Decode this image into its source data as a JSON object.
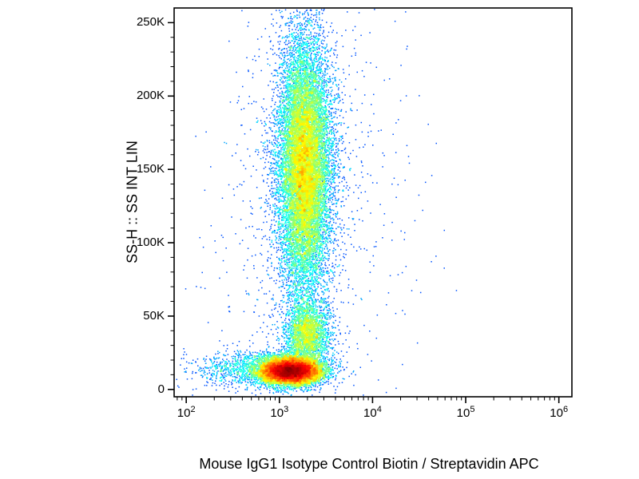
{
  "background_color": "#ffffff",
  "chart_data": {
    "type": "scatter",
    "subtype": "flow_cytometry_pseudocolor_density_dot_plot",
    "title": "",
    "xlabel": "Mouse IgG1 Isotype Control Biotin / Streptavidin APC",
    "ylabel": "SS-H :: SS INT LIN",
    "x_scale": "log10",
    "x_log_range": [
      1.87,
      6.14
    ],
    "y_range": [
      -5000,
      260000
    ],
    "x_ticks": [
      {
        "log": 2,
        "base": "10",
        "exp": "2"
      },
      {
        "log": 3,
        "base": "10",
        "exp": "3"
      },
      {
        "log": 4,
        "base": "10",
        "exp": "4"
      },
      {
        "log": 5,
        "base": "10",
        "exp": "5"
      },
      {
        "log": 6,
        "base": "10",
        "exp": "6"
      }
    ],
    "y_ticks": [
      {
        "value": 0,
        "label": "0"
      },
      {
        "value": 50000,
        "label": "50K"
      },
      {
        "value": 100000,
        "label": "100K"
      },
      {
        "value": 150000,
        "label": "150K"
      },
      {
        "value": 200000,
        "label": "200K"
      },
      {
        "value": 250000,
        "label": "250K"
      }
    ],
    "y_minor_tick_step": 10000,
    "x_minor_ticks": "log decades 2-9 per decade",
    "grid": false,
    "legend": false,
    "colormap": "jet",
    "density_color_low": "#0000bf",
    "density_color_high": "#ff0000",
    "axis_color": "#000000",
    "populations": [
      {
        "name": "high-ssc-main",
        "x_log_mean": 3.27,
        "x_log_sigma": 0.135,
        "y_mean": 152000,
        "y_sigma": 42000,
        "count": 15000
      },
      {
        "name": "high-ssc-halo",
        "x_log_mean": 3.27,
        "x_log_sigma": 0.28,
        "y_mean": 148000,
        "y_sigma": 62000,
        "count": 1200
      },
      {
        "name": "mid-ssc",
        "x_log_mean": 3.3,
        "x_log_sigma": 0.12,
        "y_mean": 38000,
        "y_sigma": 11000,
        "count": 2600
      },
      {
        "name": "low-ssc-dense",
        "x_log_mean": 3.12,
        "x_log_sigma": 0.16,
        "y_mean": 12500,
        "y_sigma": 4500,
        "count": 12000
      },
      {
        "name": "low-ssc-debris",
        "x_log_mean": 2.8,
        "x_log_sigma": 0.35,
        "y_mean": 14000,
        "y_sigma": 6500,
        "count": 1400
      },
      {
        "name": "background-noise",
        "x_log_mean": 3.35,
        "x_log_sigma": 0.6,
        "y_mean": 120000,
        "y_sigma": 95000,
        "count": 700
      }
    ]
  }
}
